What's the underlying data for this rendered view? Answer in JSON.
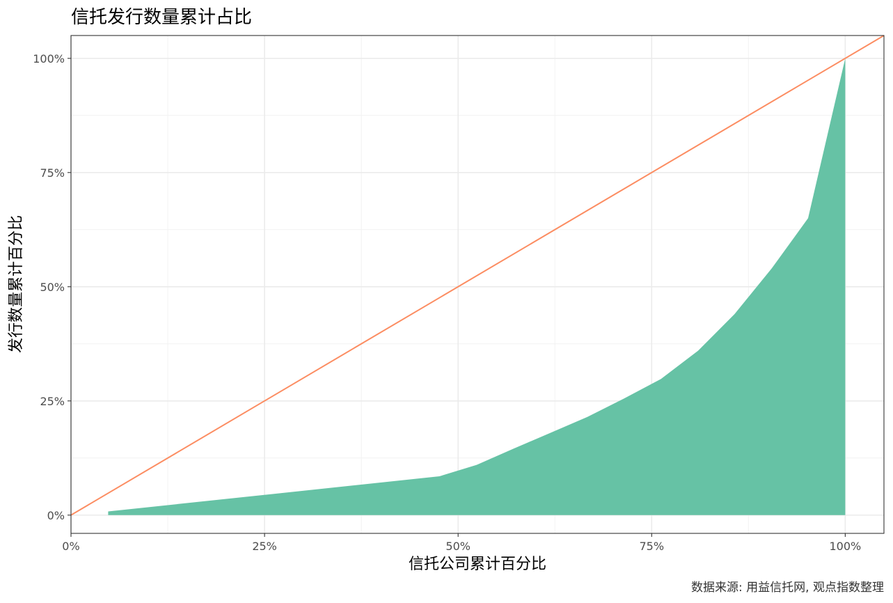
{
  "chart_data": {
    "type": "area",
    "title": "信托发行数量累计占比",
    "xlabel": "信托公司累计百分比",
    "ylabel": "发行数量累计百分比",
    "caption": "数据来源: 用益信托网, 观点指数整理",
    "xlim": [
      0,
      1.05
    ],
    "ylim": [
      -0.04,
      1.05
    ],
    "x_ticks": [
      0,
      0.25,
      0.5,
      0.75,
      1.0
    ],
    "x_tick_labels": [
      "0%",
      "25%",
      "50%",
      "75%",
      "100%"
    ],
    "y_ticks": [
      0,
      0.25,
      0.5,
      0.75,
      1.0
    ],
    "y_tick_labels": [
      "0%",
      "25%",
      "50%",
      "75%",
      "100%"
    ],
    "grid": true,
    "series": [
      {
        "kind": "area",
        "color": "#66c2a5",
        "x": [
          0.048,
          0.476,
          0.524,
          0.571,
          0.619,
          0.667,
          0.714,
          0.762,
          0.81,
          0.857,
          0.905,
          0.952,
          1.0
        ],
        "y": [
          0.008,
          0.085,
          0.11,
          0.145,
          0.18,
          0.215,
          0.255,
          0.298,
          0.36,
          0.44,
          0.54,
          0.65,
          1.0
        ]
      },
      {
        "kind": "line",
        "color": "#fc8d62",
        "x": [
          0,
          1.05
        ],
        "y": [
          0,
          1.05
        ]
      }
    ]
  }
}
